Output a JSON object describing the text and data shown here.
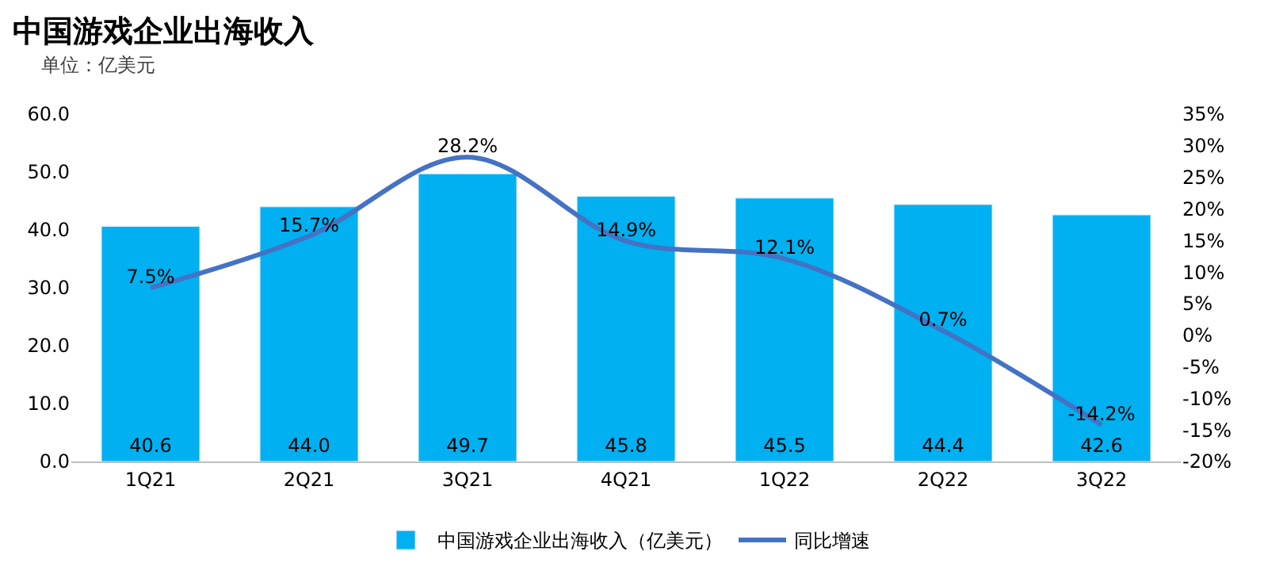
{
  "chart_data": {
    "type": "bar",
    "title": "中国游戏企业出海收入",
    "subtitle": "单位：亿美元",
    "categories": [
      "1Q21",
      "2Q21",
      "3Q21",
      "4Q21",
      "1Q22",
      "2Q22",
      "3Q22"
    ],
    "series": [
      {
        "name": "中国游戏企业出海收入（亿美元）",
        "color": "#00b0f0",
        "values": [
          40.6,
          44.0,
          49.7,
          45.8,
          45.5,
          44.4,
          42.6
        ],
        "value_labels": [
          "40.6",
          "44.0",
          "49.7",
          "45.8",
          "45.5",
          "44.4",
          "42.6"
        ]
      },
      {
        "name": "同比增速",
        "type": "line",
        "axis": "y2",
        "color": "#4472c4",
        "values": [
          7.5,
          15.7,
          28.2,
          14.9,
          12.1,
          0.7,
          -14.2
        ],
        "value_labels": [
          "7.5%",
          "15.7%",
          "28.2%",
          "14.9%",
          "12.1%",
          "0.7%",
          "-14.2%"
        ]
      }
    ],
    "ylim": [
      0,
      60
    ],
    "yticks": [
      {
        "value": 0,
        "label": "0.0"
      },
      {
        "value": 10,
        "label": "10.0"
      },
      {
        "value": 20,
        "label": "20.0"
      },
      {
        "value": 30,
        "label": "30.0"
      },
      {
        "value": 40,
        "label": "40.0"
      },
      {
        "value": 50,
        "label": "50.0"
      },
      {
        "value": 60,
        "label": "60.0"
      }
    ],
    "y2lim": [
      -20,
      35
    ],
    "y2ticks": [
      {
        "value": -20,
        "label": "-20%"
      },
      {
        "value": -15,
        "label": "-15%"
      },
      {
        "value": -10,
        "label": "-10%"
      },
      {
        "value": -5,
        "label": "-5%"
      },
      {
        "value": 0,
        "label": "0%"
      },
      {
        "value": 5,
        "label": "5%"
      },
      {
        "value": 10,
        "label": "10%"
      },
      {
        "value": 15,
        "label": "15%"
      },
      {
        "value": 20,
        "label": "20%"
      },
      {
        "value": 25,
        "label": "25%"
      },
      {
        "value": 30,
        "label": "30%"
      },
      {
        "value": 35,
        "label": "35%"
      }
    ],
    "legend": "bottom",
    "marker": "none",
    "line_style": "solid"
  }
}
